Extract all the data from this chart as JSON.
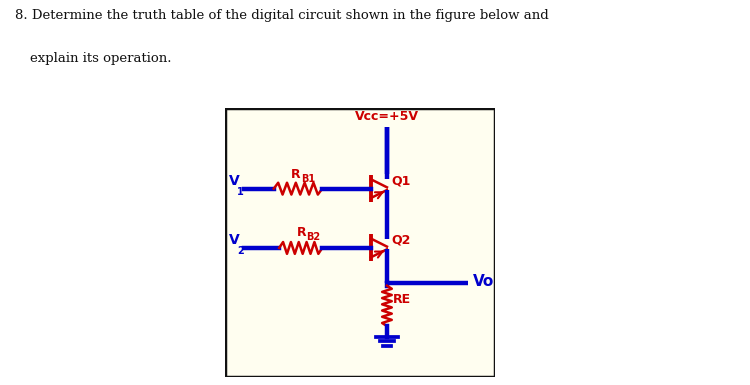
{
  "bg_color": "#fffef0",
  "border_color": "#111111",
  "wire_color": "#0000cc",
  "component_color": "#cc0000",
  "text_color_black": "#111111",
  "vcc_label": "Vcc=+5V",
  "v1_label": "V1",
  "v2_label": "V2",
  "vo_label": "Vo",
  "rb1_label": "R",
  "rb1_sub": "B1",
  "rb2_label": "R",
  "rb2_sub": "B2",
  "re_label": "RE",
  "q1_label": "Q1",
  "q2_label": "Q2",
  "wire_lw": 3.2,
  "component_lw": 1.8,
  "title_line1": "8. Determine the truth table of the digital circuit shown in the figure below and",
  "title_line2": "   explain its operation."
}
